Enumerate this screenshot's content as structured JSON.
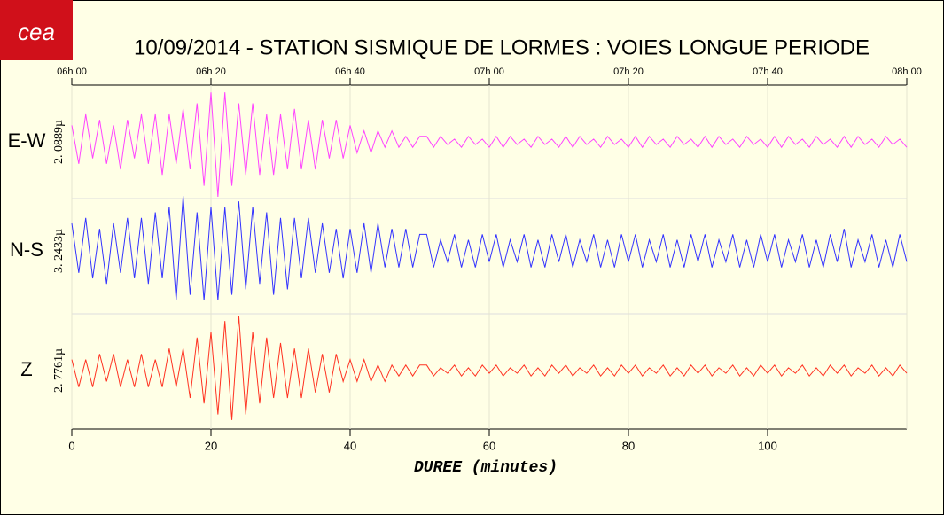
{
  "logo": "cea",
  "chart_data": {
    "type": "line",
    "title": "10/09/2014  -  STATION SISMIQUE DE LORMES : VOIES LONGUE PERIODE",
    "xlabel": "DUREE (minutes)",
    "xlim": [
      0,
      120
    ],
    "xticks": [
      0,
      20,
      40,
      60,
      80,
      100
    ],
    "top_xticks": [
      {
        "value": 0,
        "label": "06h 00"
      },
      {
        "value": 20,
        "label": "06h 20"
      },
      {
        "value": 40,
        "label": "06h 40"
      },
      {
        "value": 60,
        "label": "07h 00"
      },
      {
        "value": 80,
        "label": "07h 20"
      },
      {
        "value": 100,
        "label": "07h 40"
      },
      {
        "value": 120,
        "label": "08h 00"
      }
    ],
    "ylim": [
      -10,
      10
    ],
    "grid": true,
    "x": [
      0,
      1,
      2,
      3,
      4,
      5,
      6,
      7,
      8,
      9,
      10,
      11,
      12,
      13,
      14,
      15,
      16,
      17,
      18,
      19,
      20,
      21,
      22,
      23,
      24,
      25,
      26,
      27,
      28,
      29,
      30,
      31,
      32,
      33,
      34,
      35,
      36,
      37,
      38,
      39,
      40,
      41,
      42,
      43,
      44,
      45,
      46,
      47,
      48,
      49,
      50,
      51,
      52,
      53,
      54,
      55,
      56,
      57,
      58,
      59,
      60,
      61,
      62,
      63,
      64,
      65,
      66,
      67,
      68,
      69,
      70,
      71,
      72,
      73,
      74,
      75,
      76,
      77,
      78,
      79,
      80,
      81,
      82,
      83,
      84,
      85,
      86,
      87,
      88,
      89,
      90,
      91,
      92,
      93,
      94,
      95,
      96,
      97,
      98,
      99,
      100,
      101,
      102,
      103,
      104,
      105,
      106,
      107,
      108,
      109,
      110,
      111,
      112,
      113,
      114,
      115,
      116,
      117,
      118,
      119,
      120
    ],
    "series": [
      {
        "name": "E-W",
        "scale": "2. 0889µ",
        "color": "#ff44ff",
        "values": [
          3,
          -4,
          5,
          -3,
          4,
          -4,
          3,
          -5,
          4,
          -3,
          5,
          -4,
          5,
          -6,
          5,
          -4,
          6,
          -5,
          7,
          -8,
          9,
          -10,
          9,
          -8,
          7,
          -6,
          7,
          -6,
          5,
          -6,
          5,
          -5,
          6,
          -5,
          4,
          -5,
          4,
          -3,
          4,
          -3,
          3,
          -2,
          2,
          -2,
          2,
          -1,
          2,
          -1,
          1,
          -1,
          1,
          1,
          -1,
          1,
          -0.5,
          0.5,
          -1,
          1,
          -0.5,
          0.5,
          -1,
          1,
          -1,
          1,
          -0.5,
          0.5,
          -1,
          1,
          -0.5,
          0.5,
          -1,
          1,
          -1,
          1,
          -0.5,
          0.5,
          -1,
          1,
          -0.5,
          0.5,
          -1,
          1,
          -1,
          1,
          -0.5,
          0.5,
          -1,
          1,
          -0.5,
          0.5,
          -1,
          1,
          -1,
          1,
          -0.5,
          0.5,
          -1,
          1,
          -0.5,
          0.5,
          -1,
          1,
          -1,
          1,
          -0.5,
          0.5,
          -1,
          1,
          -0.5,
          0.5,
          -1,
          1,
          -1,
          1,
          -0.5,
          0.5,
          -1,
          1,
          -0.5,
          0.5,
          -1
        ]
      },
      {
        "name": "N-S",
        "scale": "3. 2433µ",
        "color": "#3333ff",
        "values": [
          5,
          -4,
          6,
          -5,
          4,
          -6,
          5,
          -4,
          6,
          -5,
          6,
          -6,
          7,
          -5,
          8,
          -9,
          10,
          -8,
          7,
          -9,
          8,
          -9,
          8,
          -8,
          9,
          -7,
          8,
          -6,
          7,
          -8,
          6,
          -7,
          6,
          -5,
          6,
          -4,
          5,
          -4,
          4,
          -5,
          4,
          -4,
          5,
          -4,
          5,
          -3,
          4,
          -3,
          4,
          -3,
          3,
          3,
          -3,
          2,
          -2,
          3,
          -3,
          2,
          -3,
          3,
          -2,
          3,
          -3,
          2,
          -2,
          3,
          -3,
          2,
          -3,
          3,
          -2,
          3,
          -3,
          2,
          -2,
          3,
          -3,
          2,
          -3,
          3,
          -2,
          3,
          -3,
          2,
          -2,
          3,
          -3,
          2,
          -3,
          3,
          -2,
          3,
          -3,
          2,
          -2,
          3,
          -3,
          2,
          -3,
          3,
          -2,
          3,
          -3,
          2,
          -2,
          3,
          -3,
          2,
          -3,
          3,
          -2,
          4,
          -3,
          2,
          -2,
          3,
          -3,
          2,
          -3,
          3,
          -2
        ]
      },
      {
        "name": "Z",
        "scale": "2. 7761µ",
        "color": "#ff3322",
        "values": [
          2,
          -3,
          2,
          -3,
          3,
          -2,
          3,
          -3,
          2,
          -3,
          3,
          -3,
          2,
          -3,
          4,
          -3,
          4,
          -5,
          6,
          -6,
          7,
          -8,
          9,
          -9,
          10,
          -8,
          7,
          -6,
          6,
          -5,
          5,
          -5,
          4,
          -5,
          4,
          -4,
          3,
          -4,
          3,
          -2,
          2,
          -2,
          2,
          -2,
          1,
          -2,
          1,
          -1,
          1,
          -1,
          1,
          1,
          -1,
          0.5,
          -0.5,
          1,
          -1,
          0.5,
          -1,
          1,
          -0.5,
          1,
          -1,
          0.5,
          -0.5,
          1,
          -1,
          0.5,
          -1,
          1,
          -0.5,
          1,
          -1,
          0.5,
          -0.5,
          1,
          -1,
          0.5,
          -1,
          1,
          -0.5,
          1,
          -1,
          0.5,
          -0.5,
          1,
          -1,
          0.5,
          -1,
          1,
          -0.5,
          1,
          -1,
          0.5,
          -0.5,
          1,
          -1,
          0.5,
          -1,
          1,
          -0.5,
          1,
          -1,
          0.5,
          -0.5,
          1,
          -1,
          0.5,
          -1,
          1,
          -0.5,
          1,
          -1,
          0.5,
          -0.5,
          1,
          -1,
          0.5,
          -1,
          1,
          -0.5
        ]
      }
    ]
  }
}
